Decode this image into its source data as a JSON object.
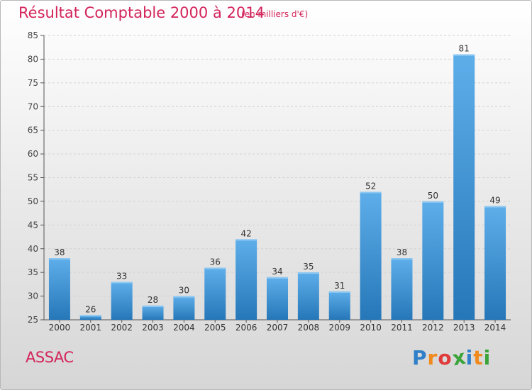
{
  "chart_data": {
    "type": "bar",
    "title": "Résultat Comptable 2000 à 2014",
    "subtitle": "(en milliers d'€)",
    "categories": [
      "2000",
      "2001",
      "2002",
      "2003",
      "2004",
      "2005",
      "2006",
      "2007",
      "2008",
      "2009",
      "2010",
      "2011",
      "2012",
      "2013",
      "2014"
    ],
    "values": [
      38,
      26,
      33,
      28,
      30,
      36,
      42,
      34,
      35,
      31,
      52,
      38,
      50,
      81,
      49
    ],
    "ylim": [
      25,
      85
    ],
    "yticks": [
      25,
      30,
      35,
      40,
      45,
      50,
      55,
      60,
      65,
      70,
      75,
      80,
      85
    ],
    "xlabel": "",
    "ylabel": "",
    "grid": true,
    "bar_color": "#3a8fd6"
  },
  "city": "ASSAC",
  "logo": {
    "text": "Proxiti",
    "letters": [
      {
        "ch": "P",
        "color": "#2f7fc9"
      },
      {
        "ch": "r",
        "color": "#f08a1c"
      },
      {
        "ch": "o",
        "color": "#e03a3a"
      },
      {
        "ch": "x",
        "color": "#3aa33a"
      },
      {
        "ch": "i",
        "color": "#2f7fc9"
      },
      {
        "ch": "t",
        "color": "#f08a1c"
      },
      {
        "ch": "i",
        "color": "#3aa33a"
      }
    ]
  }
}
